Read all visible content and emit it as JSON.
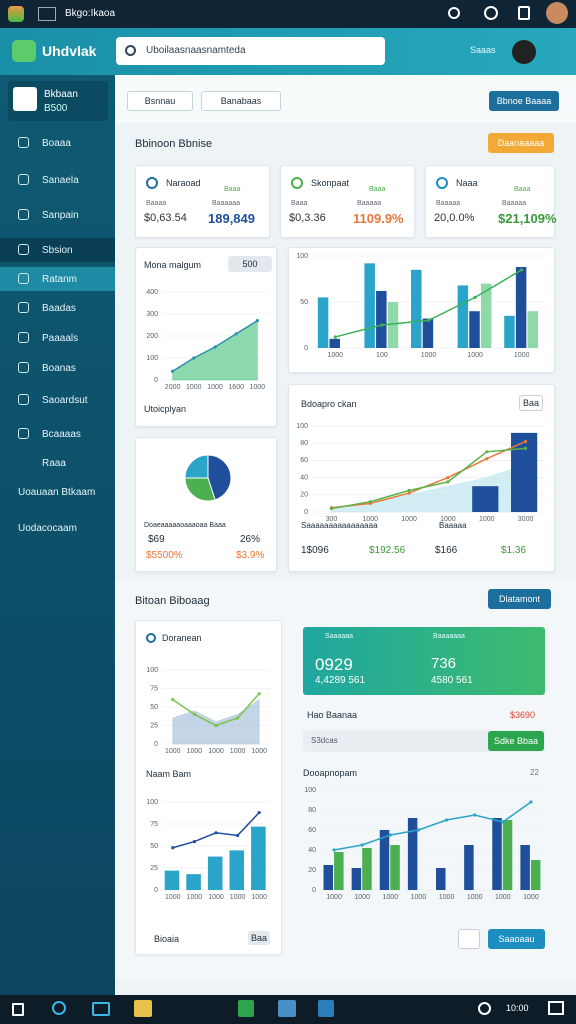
{
  "topbar": {
    "app": "Bkgo:Ikaoa"
  },
  "header": {
    "brand": "Uhdvlak",
    "search": "Uboilaasnaasnamteda",
    "link": "Saaas"
  },
  "sidebar": {
    "card_title": "Bkbaan",
    "card_sub": "B500",
    "items": [
      "Boaaa",
      "Sanaela",
      "Sanpain",
      "Sbsion",
      "Ratanm",
      "Baadas",
      "Paaaals",
      "Boanas",
      "Saoardsut",
      "Bcaaaas",
      "Raaa"
    ],
    "footer": [
      "Uoauaan Btkaam",
      "Uodacocaam"
    ]
  },
  "toolbar": {
    "buttons": [
      "Bsnnau",
      "Banabaas"
    ],
    "primary": "Bbnoe Baaaa"
  },
  "section1": {
    "title": "Bbinoon Bbnise",
    "button": "Daanaaaaa"
  },
  "kpis": [
    {
      "name": "Naraoad",
      "tag": "Baaa",
      "label1": "Baaaa",
      "label2": "Baaaaaa",
      "value1": "$0,63.54",
      "value2": "189,849"
    },
    {
      "name": "Skonpaat",
      "tag": "Baaa",
      "label1": "Baaa",
      "label2": "Baaaaa",
      "value1": "$0,3.36",
      "value2": "1109.9%"
    },
    {
      "name": "Naaa",
      "tag": "Baaa",
      "label1": "Baaaaa",
      "label2": "Baaaaa",
      "value1": "20,0.0%",
      "value2": "$21,109%"
    }
  ],
  "card_extras": {
    "dropdown": "500",
    "footer": "Utoicplyan",
    "pie_header": "Doaeaaaaaoaaaoaa  Baaa",
    "pie_legend": [
      "$69",
      "26%",
      "$5500%",
      "$3.9%"
    ],
    "line_legend": [
      "Saaaaaaaaaaaaaaaa",
      "Baaaaa",
      "1$096",
      "$192.56",
      "$166",
      "$1.36"
    ],
    "chip": "Baa"
  },
  "section2": {
    "title": "Bitoan Biboaag",
    "button": "Dlatamont"
  },
  "promo": {
    "label1": "Saaaaaa",
    "label2": "Baaaaaaa",
    "value1": "0929",
    "sub1": "4,4289 561",
    "value2": "736",
    "sub2": "4580 561"
  },
  "balance": {
    "label": "Hao Baanaa",
    "amount": "$3690",
    "input": "S3dcas",
    "button": "Sdke Bbaa"
  },
  "bottom": {
    "footer": "Bioaia",
    "chip": "Baa",
    "button": "Saaoaau",
    "corner": "22"
  },
  "taskbar": {
    "tray": "10:00"
  },
  "chart_data": [
    {
      "type": "combo",
      "title": "Mona malgum",
      "categories": [
        "2000",
        "1000",
        "1000",
        "1600",
        "1000"
      ],
      "ylim": [
        0,
        400
      ],
      "yticks": [
        0,
        100,
        200,
        300,
        400
      ],
      "series": [
        {
          "type": "area",
          "color": "#5cc98a",
          "values": [
            40,
            100,
            150,
            210,
            270
          ]
        },
        {
          "type": "line",
          "color": "#2a8fb0",
          "values": [
            40,
            100,
            150,
            210,
            270
          ]
        }
      ]
    },
    {
      "type": "combo",
      "categories": [
        "1000",
        "100",
        "1000",
        "1000",
        "1000"
      ],
      "ylim": [
        0,
        100
      ],
      "yticks": [
        0,
        50,
        100
      ],
      "series": [
        {
          "type": "bar",
          "color": "#2aa4c8",
          "values": [
            55,
            92,
            85,
            68,
            35
          ]
        },
        {
          "type": "bar",
          "color": "#1f4e9a",
          "values": [
            10,
            62,
            32,
            40,
            88
          ]
        },
        {
          "type": "bar",
          "color": "#8fd9a8",
          "values": [
            null,
            50,
            null,
            70,
            40
          ]
        },
        {
          "type": "line",
          "color": "#3bb05a",
          "values": [
            12,
            25,
            30,
            55,
            85
          ]
        }
      ]
    },
    {
      "type": "combo",
      "title": "Bdoapro ckan",
      "categories": [
        "300",
        "1000",
        "1000",
        "1000",
        "1000",
        "3000"
      ],
      "ylim": [
        0,
        100
      ],
      "yticks": [
        0,
        20,
        40,
        60,
        80,
        100
      ],
      "series": [
        {
          "type": "area",
          "color": "#bfe6ee",
          "values": [
            5,
            10,
            20,
            30,
            40,
            55
          ]
        },
        {
          "type": "bar",
          "color": "#1f4e9a",
          "values": [
            null,
            null,
            null,
            null,
            30,
            92
          ]
        },
        {
          "type": "line",
          "color": "#e8773a",
          "values": [
            5,
            10,
            22,
            40,
            62,
            82
          ]
        },
        {
          "type": "line",
          "color": "#5ab44a",
          "values": [
            4,
            12,
            25,
            35,
            70,
            74
          ]
        }
      ]
    },
    {
      "type": "pie",
      "values": [
        45,
        30,
        25
      ],
      "colors": [
        "#1f4e9a",
        "#4caf50",
        "#2aa4c8"
      ]
    },
    {
      "type": "combo",
      "title": "Doranean",
      "categories": [
        "1000",
        "1000",
        "1000",
        "1000",
        "1000"
      ],
      "ylim": [
        0,
        100
      ],
      "yticks": [
        0,
        25,
        50,
        75,
        100
      ],
      "series": [
        {
          "type": "area",
          "color": "#a9c3dc",
          "values": [
            35,
            45,
            30,
            40,
            60
          ]
        },
        {
          "type": "line",
          "color": "#7cc34a",
          "values": [
            60,
            40,
            25,
            35,
            68
          ]
        }
      ]
    },
    {
      "type": "combo",
      "title": "Naam Bam",
      "categories": [
        "1000",
        "1000",
        "1000",
        "1000",
        "1000"
      ],
      "ylim": [
        0,
        100
      ],
      "yticks": [
        0,
        25,
        50,
        75,
        100
      ],
      "series": [
        {
          "type": "bar",
          "color": "#2aa4c8",
          "values": [
            22,
            18,
            38,
            45,
            72
          ]
        },
        {
          "type": "line",
          "color": "#1f4e9a",
          "values": [
            48,
            55,
            65,
            62,
            88
          ]
        }
      ]
    },
    {
      "type": "combo",
      "title": "Dooapnopam",
      "categories": [
        "1000",
        "1000",
        "1000",
        "1000",
        "1000",
        "1000",
        "1000",
        "1000"
      ],
      "ylim": [
        0,
        100
      ],
      "yticks": [
        0,
        20,
        40,
        60,
        80,
        100
      ],
      "series": [
        {
          "type": "bar",
          "color": "#1f4e9a",
          "values": [
            25,
            22,
            60,
            72,
            22,
            45,
            72,
            45
          ]
        },
        {
          "type": "bar",
          "color": "#4caf50",
          "values": [
            38,
            42,
            45,
            null,
            null,
            null,
            70,
            30
          ]
        },
        {
          "type": "line",
          "color": "#2aa4c8",
          "values": [
            40,
            45,
            55,
            60,
            70,
            75,
            68,
            88
          ]
        }
      ]
    }
  ]
}
